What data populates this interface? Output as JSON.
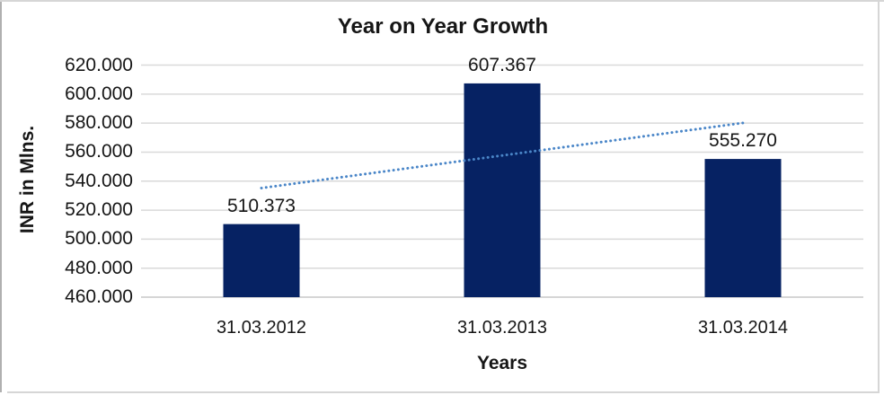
{
  "chart_data": {
    "type": "bar",
    "title": "Year on Year Growth",
    "categories": [
      "31.03.2012",
      "31.03.2013",
      "31.03.2014"
    ],
    "values": [
      510.373,
      607.367,
      555.27
    ],
    "value_labels": [
      "510.373",
      "607.367",
      "555.270"
    ],
    "xlabel": "Years",
    "ylabel": "INR in Mlns.",
    "ylim": [
      460,
      620
    ],
    "ytick_step": 20,
    "ytick_labels": [
      "460.000",
      "480.000",
      "500.000",
      "520.000",
      "540.000",
      "560.000",
      "580.000",
      "600.000",
      "620.000"
    ],
    "grid": true,
    "legend": "none",
    "trendline": {
      "type": "linear",
      "style": "dotted",
      "fitted_values": [
        535.22,
        557.67,
        580.12
      ]
    }
  },
  "colors": {
    "bar": "#062263",
    "trendline": "#4a86c8",
    "gridline": "#d9d9d9",
    "axis_line": "#c9c9c9",
    "frame": "#d6d6d6",
    "frame_left": "#b0b0b0",
    "text": "#161616"
  }
}
